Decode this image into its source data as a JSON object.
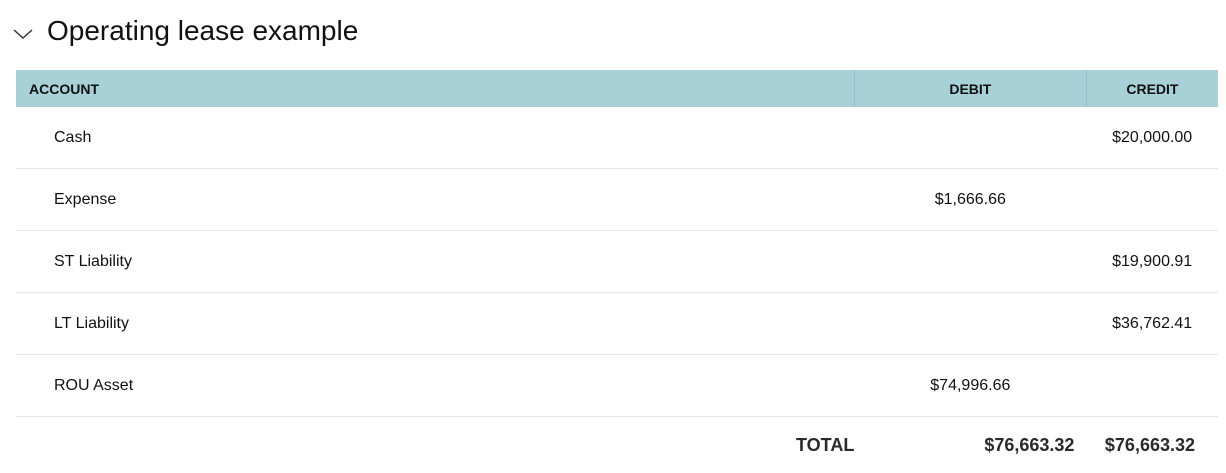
{
  "section": {
    "title": "Operating lease example",
    "expanded": true
  },
  "table": {
    "columns": {
      "account": "ACCOUNT",
      "debit": "DEBIT",
      "credit": "CREDIT"
    },
    "rows": [
      {
        "account": "Cash",
        "debit": "",
        "credit": "$20,000.00"
      },
      {
        "account": "Expense",
        "debit": "$1,666.66",
        "credit": ""
      },
      {
        "account": "ST Liability",
        "debit": "",
        "credit": "$19,900.91"
      },
      {
        "account": "LT Liability",
        "debit": "",
        "credit": "$36,762.41"
      },
      {
        "account": "ROU Asset",
        "debit": "$74,996.66",
        "credit": ""
      }
    ],
    "total": {
      "label": "TOTAL",
      "debit": "$76,663.32",
      "credit": "$76,663.32"
    }
  },
  "colors": {
    "header_bg": "#a7d0d7"
  }
}
